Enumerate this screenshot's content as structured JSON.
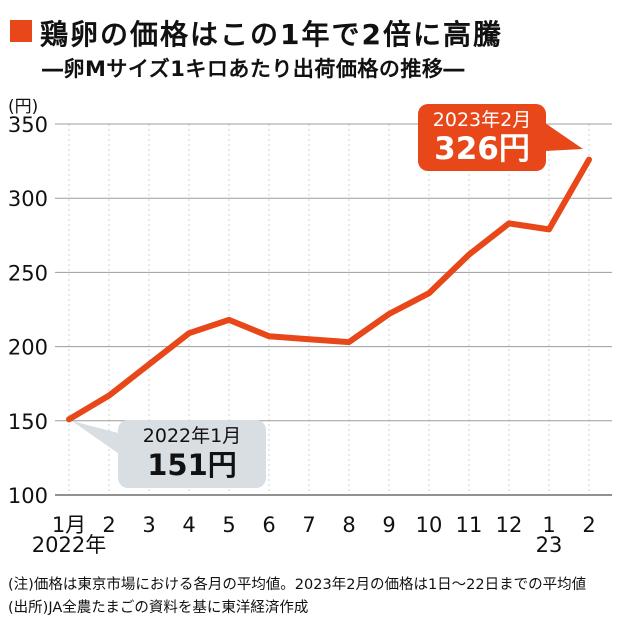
{
  "colors": {
    "accent": "#e8471a",
    "muted_box": "#d9dee3"
  },
  "chart_data": {
    "type": "line",
    "title": "鶏卵の価格はこの1年で2倍に高騰",
    "subtitle": "―卵Mサイズ1キロあたり出荷価格の推移―",
    "unit_label": "(円)",
    "xlabel": "",
    "ylabel": "円",
    "categories": [
      "1月",
      "2",
      "3",
      "4",
      "5",
      "6",
      "7",
      "8",
      "9",
      "10",
      "11",
      "12",
      "1",
      "2"
    ],
    "x_sub_labels": [
      {
        "index": 0,
        "text": "2022年"
      },
      {
        "index": 12,
        "text": "23"
      }
    ],
    "values": [
      151,
      167,
      188,
      209,
      218,
      207,
      205,
      203,
      222,
      236,
      262,
      283,
      279,
      326
    ],
    "y_ticks": [
      100,
      150,
      200,
      250,
      300,
      350
    ],
    "ylim": [
      100,
      350
    ],
    "grid": true,
    "line_color": "#e8471a",
    "annotations": [
      {
        "label": "2023年2月",
        "value": "326円",
        "point_index": 13,
        "style": "accent"
      },
      {
        "label": "2022年1月",
        "value": "151円",
        "point_index": 0,
        "style": "muted"
      }
    ]
  },
  "notes": [
    "(注)価格は東京市場における各月の平均値。2023年2月の価格は1日～22日までの平均値",
    "(出所)JA全農たまごの資料を基に東洋経済作成"
  ]
}
